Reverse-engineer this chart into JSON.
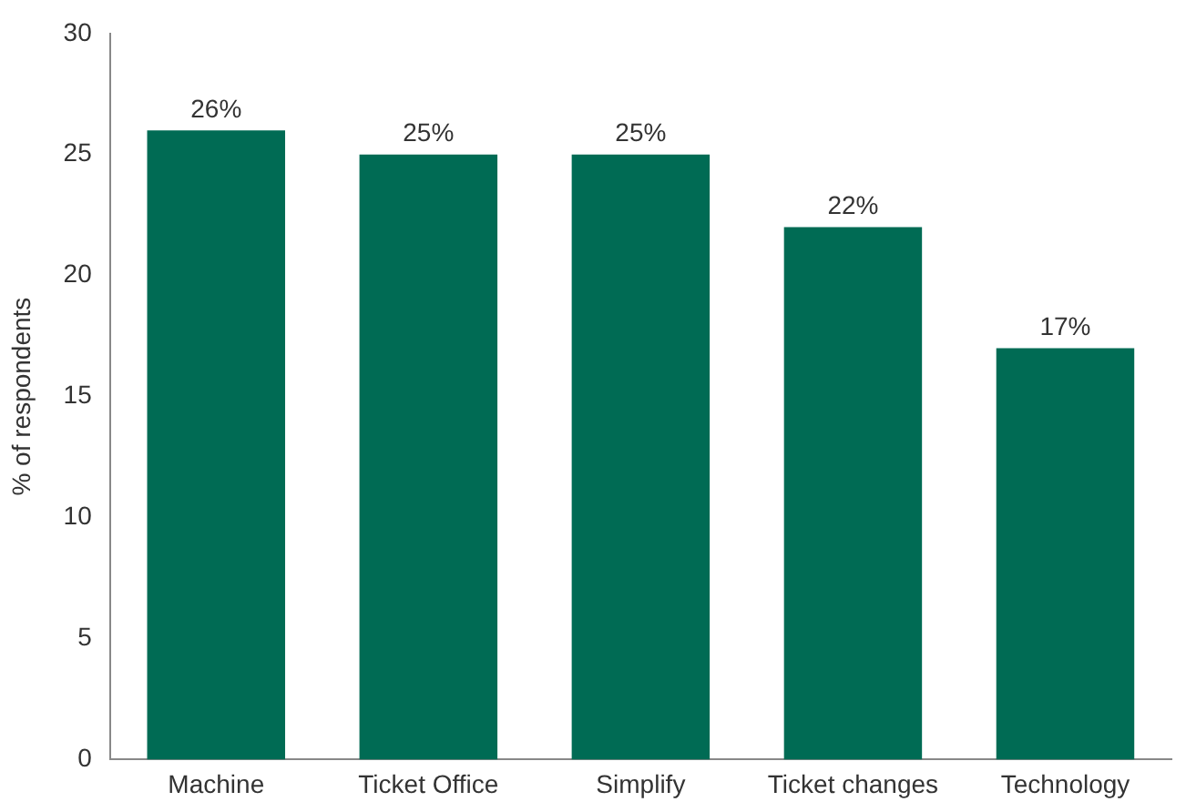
{
  "chart_data": {
    "type": "bar",
    "ylabel": "% of respondents",
    "categories": [
      "Machine",
      "Ticket Office",
      "Simplify",
      "Ticket changes",
      "Technology"
    ],
    "values": [
      26,
      25,
      25,
      22,
      17
    ],
    "value_labels": [
      "26%",
      "25%",
      "25%",
      "22%",
      "17%"
    ],
    "color": "#006b54",
    "ylim": [
      0,
      30
    ],
    "yticks": [
      0,
      5,
      10,
      15,
      20,
      25,
      30
    ],
    "grid": false,
    "legend": false
  }
}
